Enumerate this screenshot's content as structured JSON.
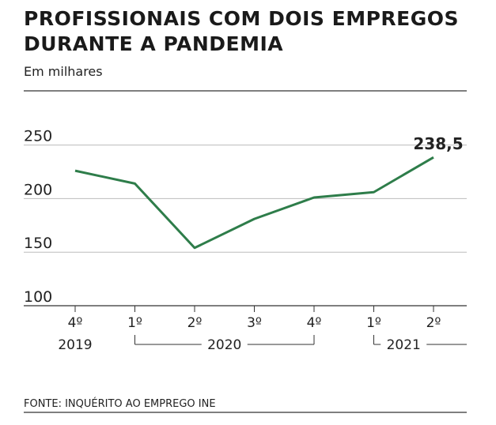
{
  "chart_data": {
    "type": "line",
    "title": "PROFISSIONAIS COM DOIS EMPREGOS DURANTE A PANDEMIA",
    "subtitle": "Em milhares",
    "categories": [
      "4º",
      "1º",
      "2º",
      "3º",
      "4º",
      "1º",
      "2º"
    ],
    "years": [
      "2019",
      "2020",
      "2020",
      "2020",
      "2020",
      "2021",
      "2021"
    ],
    "values": [
      226,
      214,
      154,
      181,
      201,
      206,
      238.5
    ],
    "value_labels": [
      null,
      null,
      null,
      null,
      null,
      null,
      "238,5"
    ],
    "color": "#2e7d4a",
    "ylim": [
      100,
      260
    ],
    "yticks": [
      100,
      150,
      200,
      250
    ],
    "grid": true,
    "source": "FONTE: INQUÉRITO AO EMPREGO INE"
  }
}
